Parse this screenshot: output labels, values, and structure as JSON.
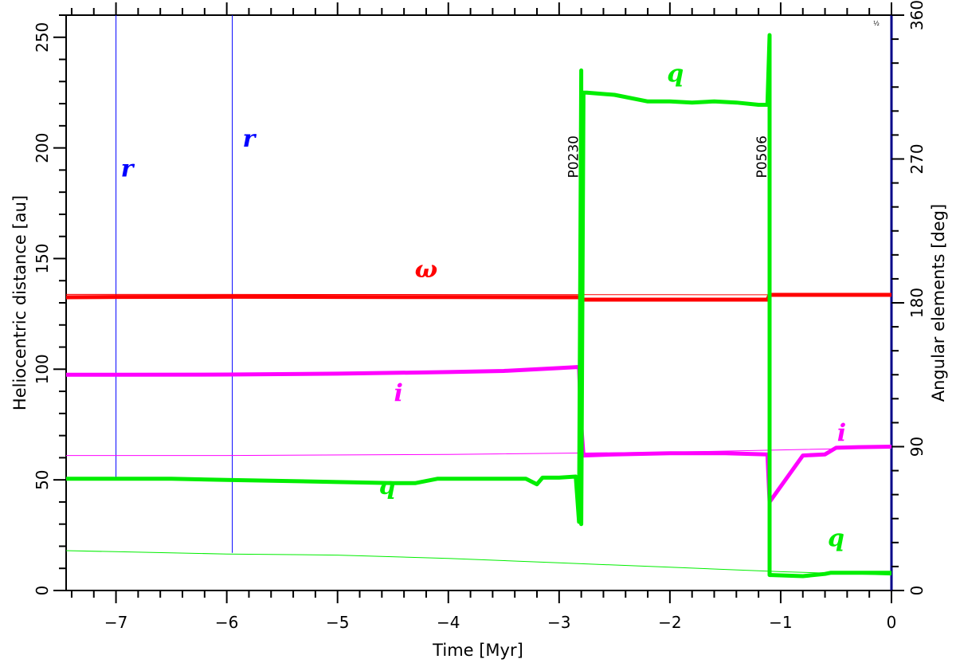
{
  "chart_data": {
    "type": "line",
    "xlabel": "Time [Myr]",
    "ylabel_left": "Heliocentric distance [au]",
    "ylabel_right": "Angular elements [deg]",
    "xlim": [
      -7.45,
      0.0
    ],
    "ylim_left": [
      0,
      260
    ],
    "ylim_right": [
      0,
      360
    ],
    "x_ticks": [
      -7,
      -6,
      -5,
      -4,
      -3,
      -2,
      -1,
      0
    ],
    "x_tick_labels": [
      "−7",
      "−6",
      "−5",
      "−4",
      "−3",
      "−2",
      "−1",
      "0"
    ],
    "y_left_ticks": [
      0,
      50,
      100,
      150,
      200,
      250
    ],
    "y_left_tick_labels": [
      "0",
      "50",
      "100",
      "150",
      "200",
      "250"
    ],
    "y_right_ticks": [
      0,
      90,
      180,
      270,
      360
    ],
    "y_right_tick_labels": [
      "0",
      "90",
      "180",
      "270",
      "360"
    ],
    "grid": false,
    "corner_mark": "½",
    "events": [
      {
        "label": "P0230",
        "x": -2.8
      },
      {
        "label": "P0506",
        "x": -1.1
      }
    ],
    "series": [
      {
        "label": "ω",
        "axis": "right",
        "color": "#ff0000",
        "width": 5,
        "x": [
          -7.45,
          -7.0,
          -6.0,
          -5.0,
          -4.0,
          -3.0,
          -2.82,
          -2.8,
          -2.5,
          -2.0,
          -1.5,
          -1.12,
          -1.1,
          -0.5,
          0.0
        ],
        "y": [
          183.5,
          183.7,
          183.8,
          183.7,
          183.6,
          183.5,
          183.5,
          182.0,
          182.0,
          182.0,
          182.0,
          182.0,
          185.0,
          185.0,
          185.0
        ]
      },
      {
        "axis": "right",
        "color": "#ff0000",
        "width": 1,
        "x": [
          -7.45,
          -6.0,
          -4.0,
          -2.0,
          0.0
        ],
        "y": [
          185.3,
          185.3,
          185.2,
          185.1,
          185.0
        ]
      },
      {
        "label": "i",
        "axis": "left",
        "color": "#ff00ff",
        "width": 5,
        "x": [
          -7.45,
          -7.0,
          -6.0,
          -5.0,
          -4.0,
          -3.5,
          -3.0,
          -2.82,
          -2.8,
          -2.78,
          -2.5,
          -2.0,
          -1.5,
          -1.12,
          -1.1,
          -0.8,
          -0.6,
          -0.5,
          -0.3,
          0.0
        ],
        "y": [
          97.5,
          97.5,
          97.6,
          98.0,
          98.7,
          99.2,
          100.5,
          101.0,
          75.0,
          61.0,
          61.5,
          62.0,
          62.0,
          61.5,
          40.0,
          61.0,
          61.5,
          64.5,
          64.8,
          65.0
        ]
      },
      {
        "axis": "left",
        "color": "#ff00ff",
        "width": 1,
        "x": [
          -7.45,
          -6.0,
          -4.0,
          -2.0,
          0.0
        ],
        "y": [
          61.0,
          61.0,
          61.5,
          62.5,
          64.5
        ]
      },
      {
        "label": "q",
        "axis": "left",
        "color": "#00ee00",
        "width": 5,
        "x": [
          -7.45,
          -7.0,
          -6.5,
          -6.0,
          -5.5,
          -5.0,
          -4.5,
          -4.3,
          -4.1,
          -3.9,
          -3.6,
          -3.3,
          -3.2,
          -3.15,
          -3.0,
          -2.85,
          -2.82,
          -2.8,
          -2.8,
          -2.8,
          -2.78,
          -2.75,
          -2.5,
          -2.2,
          -2.0,
          -1.8,
          -1.6,
          -1.4,
          -1.2,
          -1.12,
          -1.1,
          -1.1,
          -1.1,
          -1.08,
          -0.8,
          -0.6,
          -0.55,
          -0.4,
          0.0
        ],
        "y": [
          50.5,
          50.5,
          50.5,
          50.0,
          49.5,
          49.0,
          48.5,
          48.5,
          50.5,
          50.5,
          50.5,
          50.5,
          48.0,
          51.0,
          51.0,
          51.5,
          31.0,
          235.0,
          226.0,
          30.0,
          225.0,
          225.0,
          224.0,
          221.0,
          221.0,
          220.5,
          221.0,
          220.5,
          219.5,
          219.5,
          251.0,
          40.0,
          7.0,
          7.0,
          6.5,
          7.5,
          8.0,
          8.0,
          8.0
        ]
      },
      {
        "axis": "left",
        "color": "#00ee00",
        "width": 1,
        "x": [
          -7.45,
          -6.0,
          -5.0,
          -4.0,
          -3.0,
          -2.0,
          -1.0,
          0.0
        ],
        "y": [
          18.0,
          16.5,
          16.0,
          14.5,
          12.5,
          10.5,
          8.5,
          7.0
        ]
      },
      {
        "axis": "left",
        "color": "#0000ff",
        "width": 1,
        "x": [
          -7.0,
          -7.0
        ],
        "y": [
          50.5,
          260.0
        ]
      },
      {
        "axis": "left",
        "color": "#0000ff",
        "width": 1,
        "x": [
          -5.95,
          -5.95
        ],
        "y": [
          17.0,
          260.0
        ]
      },
      {
        "axis": "left",
        "color": "#000088",
        "width": 3,
        "x": [
          0.0,
          0.0
        ],
        "y": [
          0.0,
          260.0
        ]
      }
    ],
    "labels": [
      {
        "text": "r",
        "color": "#0000ff",
        "x": -6.9,
        "y": 187.0
      },
      {
        "text": "r",
        "color": "#0000ff",
        "x": -5.8,
        "y": 200.5
      },
      {
        "text": "ω",
        "color": "#ff0000",
        "x": -4.2,
        "y": 141.5
      },
      {
        "text": "q",
        "color": "#00ee00",
        "x": -1.95,
        "y": 230.0
      },
      {
        "text": "i",
        "color": "#ff00ff",
        "x": -4.45,
        "y": 85.5
      },
      {
        "text": "i",
        "color": "#ff00ff",
        "x": -0.45,
        "y": 67.5
      },
      {
        "text": "q",
        "color": "#00ee00",
        "x": -4.55,
        "y": 43.5
      },
      {
        "text": "q",
        "color": "#00ee00",
        "x": -0.5,
        "y": 20.0
      }
    ]
  }
}
